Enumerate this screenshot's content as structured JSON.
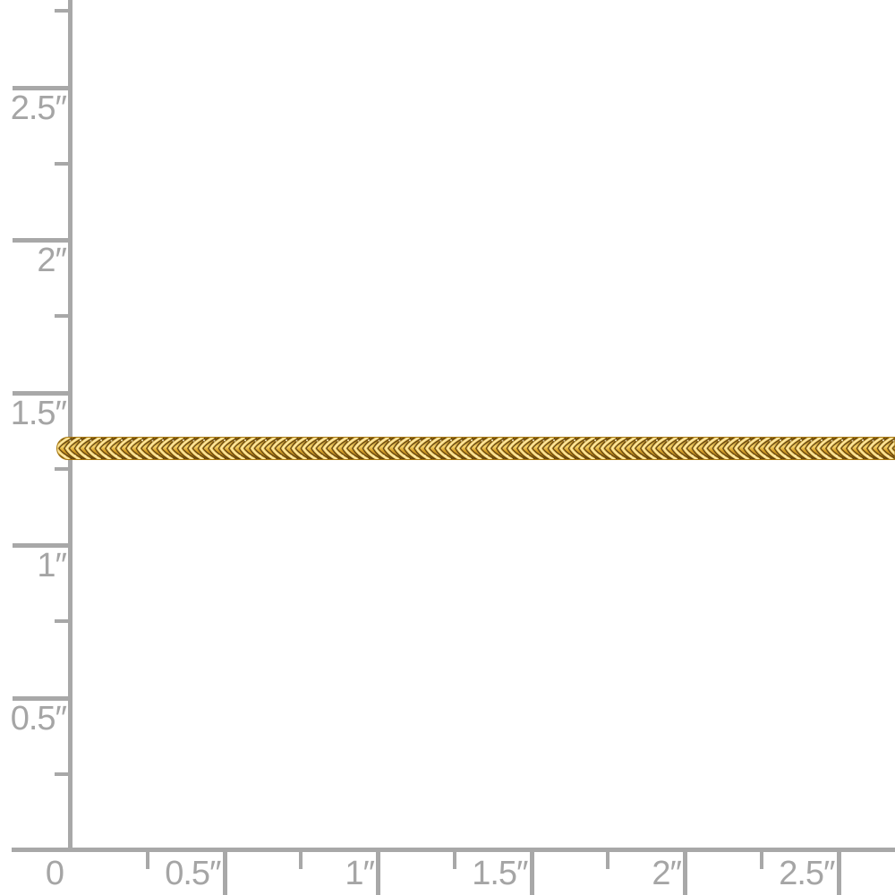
{
  "rulers": {
    "unit": "inches",
    "zero_label": "0",
    "left": {
      "major_ticks": [
        {
          "value": 0.5,
          "label": "0.5″"
        },
        {
          "value": 1.0,
          "label": "1″"
        },
        {
          "value": 1.5,
          "label": "1.5″"
        },
        {
          "value": 2.0,
          "label": "2″"
        },
        {
          "value": 2.5,
          "label": "2.5″"
        }
      ],
      "minor_tick_values": [
        0.25,
        0.75,
        1.25,
        1.75,
        2.25,
        2.75
      ]
    },
    "bottom": {
      "major_ticks": [
        {
          "value": 0.5,
          "label": "0.5″"
        },
        {
          "value": 1.0,
          "label": "1″"
        },
        {
          "value": 1.5,
          "label": "1.5″"
        },
        {
          "value": 2.0,
          "label": "2″"
        },
        {
          "value": 2.5,
          "label": "2.5″"
        }
      ],
      "minor_tick_values": [
        0.25,
        0.75,
        1.25,
        1.75,
        2.25
      ]
    }
  },
  "chain": {
    "description": "gold wheat chain"
  },
  "colors": {
    "background": "#ffffff",
    "ruler": "#a8a8a8",
    "label": "#a5a5a5",
    "gold_light": "#fdeebd",
    "gold_bright": "#f5d26a",
    "gold_mid": "#dca62e",
    "gold_deep": "#a87914",
    "gold_shadow": "#7c560a",
    "gold_dark": "#57390a"
  }
}
